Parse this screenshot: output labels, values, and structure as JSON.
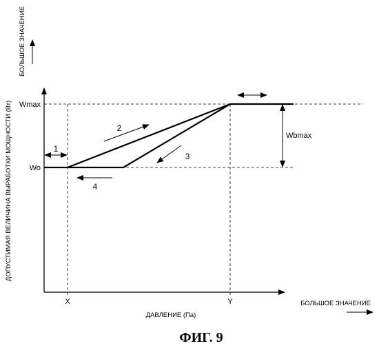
{
  "figure": {
    "caption": "ФИГ. 9",
    "y_axis_label": "ДОПУСТИМАЯ ВЕЛИЧИНА ВЫРАБОТКИ МОЩНОСТИ (Вт)",
    "y_axis_direction_label": "БОЛЬШОЕ ЗНАЧЕНИЕ",
    "x_axis_label": "ДАВЛЕНИЕ (Па)",
    "x_axis_direction_label": "БОЛЬШОЕ ЗНАЧЕНИЕ",
    "y_ticks": {
      "max": "Wmax",
      "base": "Wo"
    },
    "x_ticks": {
      "x": "X",
      "y": "Y"
    },
    "span_label": "Wbmax",
    "curve_labels": {
      "one": "1",
      "two": "2",
      "three": "3",
      "four": "4"
    }
  }
}
